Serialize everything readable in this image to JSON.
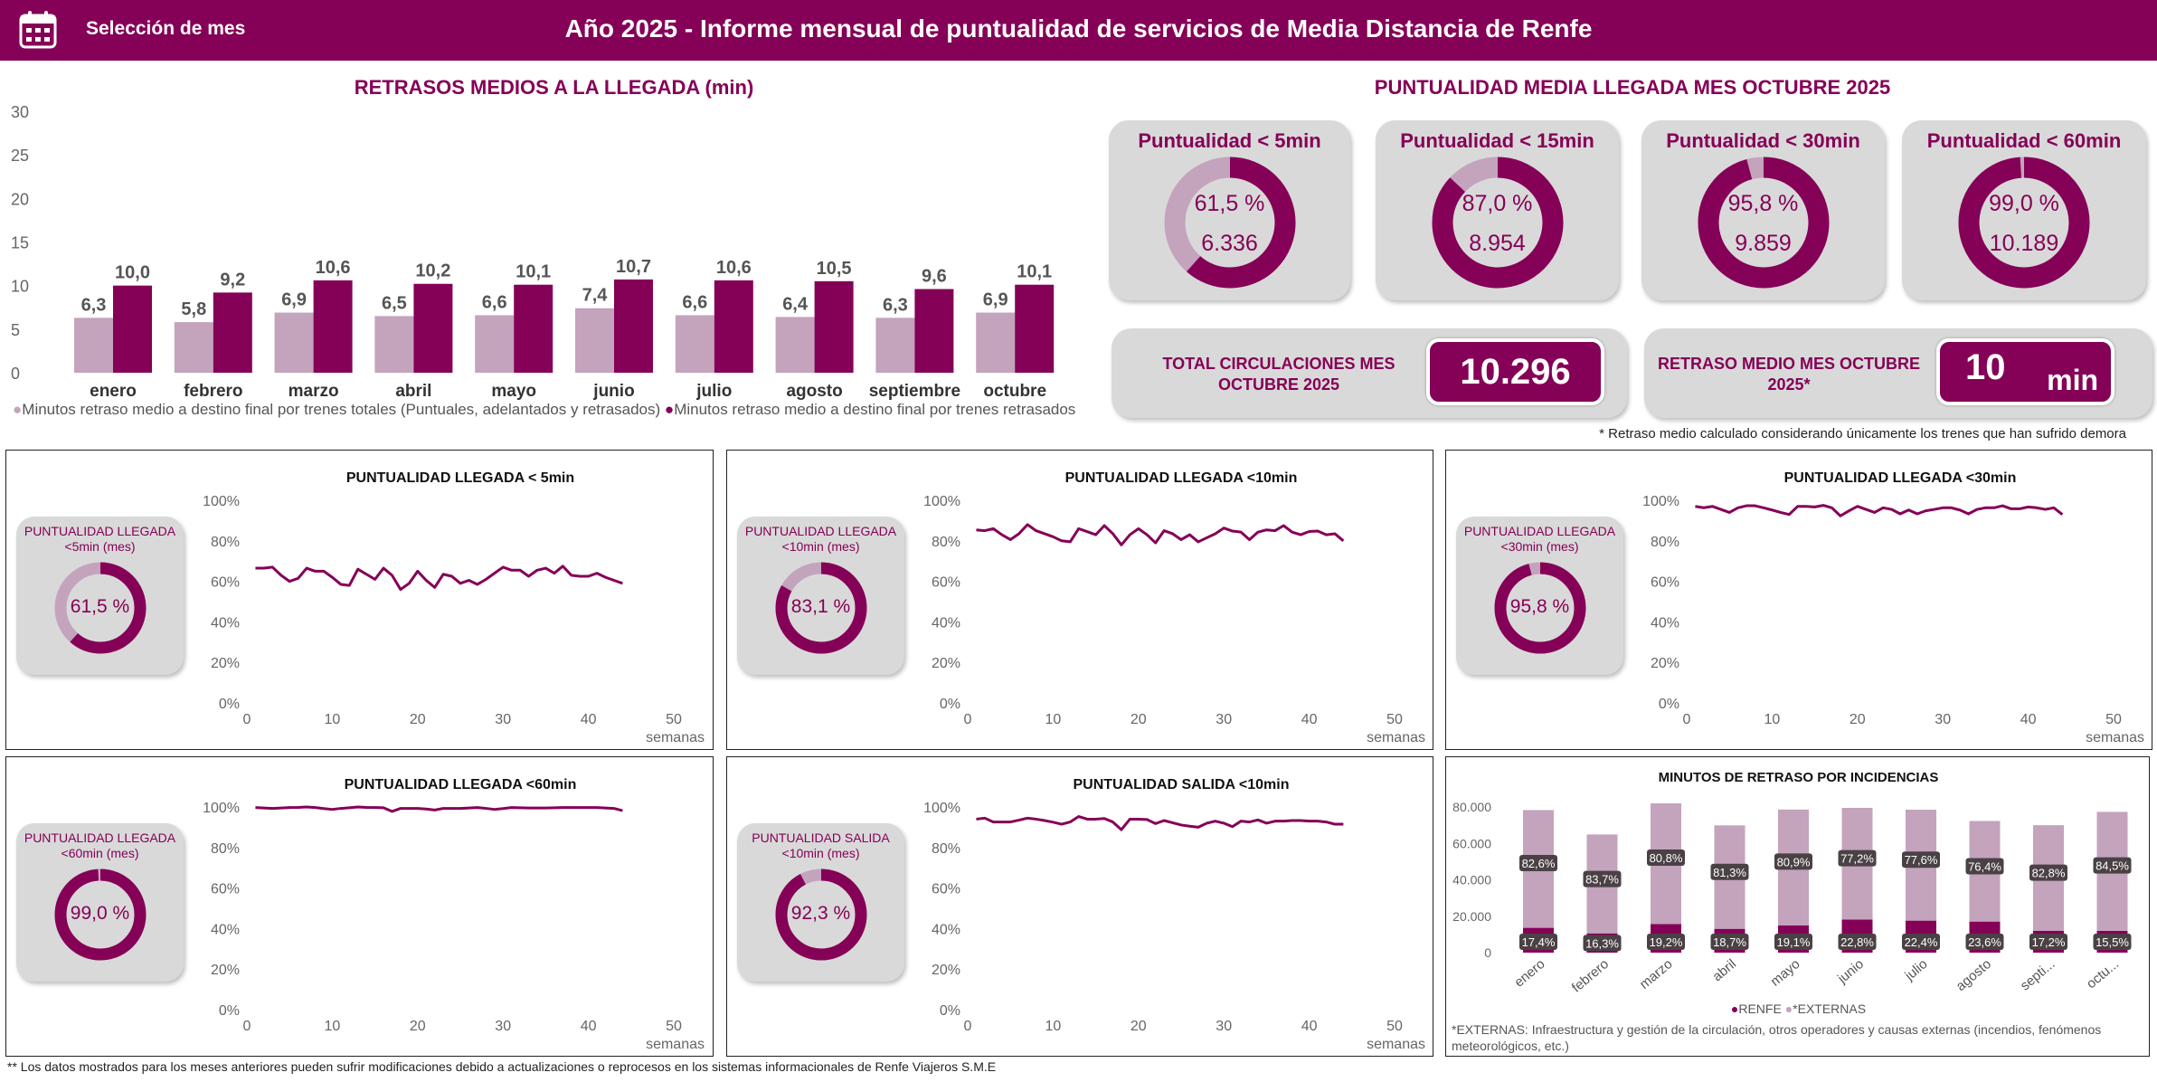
{
  "header": {
    "month_selector_label": "Selección de mes",
    "title": "Año 2025 - Informe mensual de puntualidad de servicios de Media Distancia de Renfe",
    "icon": "calendar-icon"
  },
  "colors": {
    "primary": "#850057",
    "light": "#c4a3bd",
    "card": "#d9d9d9"
  },
  "bar_chart": {
    "title": "RETRASOS MEDIOS A LA LLEGADA (min)",
    "chart_data": {
      "type": "bar",
      "categories": [
        "enero",
        "febrero",
        "marzo",
        "abril",
        "mayo",
        "junio",
        "julio",
        "agosto",
        "septiembre",
        "octubre"
      ],
      "series": [
        {
          "name": "Minutos retraso medio a destino final por trenes totales (Puntuales, adelantados y retrasados)",
          "color": "#c4a3bd",
          "values": [
            6.3,
            5.8,
            6.9,
            6.5,
            6.6,
            7.4,
            6.6,
            6.4,
            6.3,
            6.9
          ],
          "labels": [
            "6,3",
            "5,8",
            "6,9",
            "6,5",
            "6,6",
            "7,4",
            "6,6",
            "6,4",
            "6,3",
            "6,9"
          ]
        },
        {
          "name": "Minutos retraso medio a destino final por trenes retrasados",
          "color": "#850057",
          "values": [
            10.0,
            9.2,
            10.6,
            10.2,
            10.1,
            10.7,
            10.6,
            10.5,
            9.6,
            10.1
          ],
          "labels": [
            "10,0",
            "9,2",
            "10,6",
            "10,2",
            "10,1",
            "10,7",
            "10,6",
            "10,5",
            "9,6",
            "10,1"
          ]
        }
      ],
      "ylim": [
        0,
        30
      ],
      "yticks": [
        "0",
        "5",
        "10",
        "15",
        "20",
        "25",
        "30"
      ],
      "legend": "bottom"
    }
  },
  "kpi": {
    "title": "PUNTUALIDAD MEDIA LLEGADA MES OCTUBRE 2025",
    "donuts": [
      {
        "title": "Puntualidad < 5min",
        "pct": 61.5,
        "pct_label": "61,5 %",
        "count": "6.336"
      },
      {
        "title": "Puntualidad < 15min",
        "pct": 87.0,
        "pct_label": "87,0 %",
        "count": "8.954"
      },
      {
        "title": "Puntualidad < 30min",
        "pct": 95.8,
        "pct_label": "95,8 %",
        "count": "9.859"
      },
      {
        "title": "Puntualidad < 60min",
        "pct": 99.0,
        "pct_label": "99,0 %",
        "count": "10.189"
      }
    ],
    "total_label": "TOTAL CIRCULACIONES MES OCTUBRE 2025",
    "total_value": "10.296",
    "delay_label": "RETRASO MEDIO MES OCTUBRE 2025*",
    "delay_value": "10",
    "delay_unit": "min",
    "note": "* Retraso medio calculado considerando únicamente los trenes que han sufrido demora"
  },
  "line_panels": [
    {
      "title": "PUNTUALIDAD LLEGADA < 5min",
      "card_title": "PUNTUALIDAD LLEGADA <5min (mes)",
      "pct": 61.5,
      "pct_label": "61,5 %",
      "values": [
        66.5,
        66.5,
        67,
        63,
        60,
        61.5,
        66.5,
        65,
        65,
        62,
        58.5,
        58,
        66,
        63.5,
        61,
        66.5,
        63,
        56,
        59,
        65,
        60.5,
        57,
        63.5,
        62.5,
        59,
        60.5,
        58.5,
        61,
        64,
        67,
        65.5,
        65.5,
        62.5,
        65.5,
        66.5,
        64,
        67.5,
        63,
        62.5,
        62.5,
        64,
        62,
        60.5,
        59
      ]
    },
    {
      "title": "PUNTUALIDAD LLEGADA <10min",
      "card_title": "PUNTUALIDAD LLEGADA <10min (mes)",
      "pct": 83.1,
      "pct_label": "83,1 %",
      "values": [
        85.4,
        85,
        86,
        83,
        80.6,
        83.5,
        88,
        85,
        83.5,
        82,
        80,
        79.5,
        86,
        84.5,
        83,
        87.5,
        83.5,
        78,
        83,
        86,
        83,
        79,
        85,
        83.5,
        80.6,
        83,
        79.5,
        81.5,
        83.5,
        86.3,
        84.8,
        84.3,
        80.6,
        84.3,
        85.4,
        85,
        87.5,
        84.3,
        83,
        84.6,
        84.8,
        83,
        83.5,
        80
      ]
    },
    {
      "title": "PUNTUALIDAD LLEGADA <30min",
      "card_title": "PUNTUALIDAD LLEGADA <30min (mes)",
      "pct": 95.8,
      "pct_label": "95,8 %",
      "values": [
        97,
        96.3,
        97,
        95.5,
        94,
        96.3,
        97.3,
        97.3,
        96.3,
        95.2,
        94,
        93,
        97,
        97,
        96.7,
        97.5,
        96.3,
        92.3,
        94.8,
        97,
        95.5,
        94,
        96.3,
        95.5,
        93.3,
        95.2,
        93.3,
        94.8,
        95.5,
        96.3,
        96.3,
        95.2,
        93.3,
        95.5,
        96.3,
        96.3,
        97.3,
        95.8,
        95.8,
        96.7,
        96.3,
        95.5,
        96.3,
        93
      ]
    },
    {
      "title": "PUNTUALIDAD LLEGADA <60min",
      "card_title": "PUNTUALIDAD LLEGADA <60min (mes)",
      "pct": 99.0,
      "pct_label": "99,0 %",
      "values": [
        99.7,
        99.5,
        99.3,
        99.5,
        99.7,
        99.8,
        100,
        99.7,
        99.2,
        98.8,
        99.3,
        99.6,
        100,
        99.8,
        99.7,
        99.6,
        97.8,
        99.3,
        99.3,
        99.3,
        99,
        98.5,
        99.3,
        99.3,
        99.3,
        99.5,
        99.7,
        99.3,
        98.8,
        99.2,
        99.7,
        99.6,
        99.5,
        99.5,
        99.5,
        99.6,
        99.7,
        99.7,
        99.7,
        99.7,
        99.7,
        99.5,
        99.3,
        98.2
      ]
    },
    {
      "title": "PUNTUALIDAD SALIDA <10min",
      "card_title": "PUNTUALIDAD SALIDA <10min (mes)",
      "pct": 92.3,
      "pct_label": "92,3 %",
      "values": [
        94,
        94.5,
        92.6,
        92.6,
        92.6,
        93.5,
        94.5,
        94,
        93.3,
        92.5,
        91.5,
        92.6,
        95.3,
        94,
        94,
        94.3,
        92.6,
        88.8,
        94,
        94,
        93.8,
        91.8,
        93.3,
        92.2,
        91.1,
        90.5,
        90,
        92,
        93,
        92,
        90.3,
        93,
        92.6,
        93.6,
        92,
        93,
        93,
        93.3,
        93.3,
        93,
        93,
        92.6,
        91.5,
        91.5
      ]
    }
  ],
  "line_axes": {
    "yticks": [
      "0%",
      "20%",
      "40%",
      "60%",
      "80%",
      "100%"
    ],
    "xticks": [
      "0",
      "10",
      "20",
      "30",
      "40",
      "50"
    ],
    "xlabel": "semanas",
    "xlim": [
      0,
      50
    ],
    "ylim": [
      0,
      100
    ]
  },
  "incidents": {
    "title": "MINUTOS DE RETRASO POR INCIDENCIAS",
    "chart_data": {
      "type": "bar",
      "stacked": true,
      "categories": [
        "enero",
        "febrero",
        "marzo",
        "abril",
        "mayo",
        "junio",
        "julio",
        "agosto",
        "septi...",
        "octu..."
      ],
      "series": [
        {
          "name": "RENFE",
          "color": "#850057",
          "values": [
            13620,
            10580,
            15740,
            13070,
            15010,
            18130,
            17580,
            17060,
            12040,
            11980
          ],
          "labels": [
            "17,4%",
            "16,3%",
            "19,2%",
            "18,7%",
            "19,1%",
            "22,8%",
            "22,4%",
            "23,6%",
            "17,2%",
            "15,5%"
          ]
        },
        {
          "name": "*EXTERNAS",
          "color": "#c4a3bd",
          "values": [
            64680,
            54320,
            66260,
            56830,
            63590,
            61370,
            60920,
            55240,
            57960,
            65320
          ],
          "labels": [
            "82,6%",
            "83,7%",
            "80,8%",
            "81,3%",
            "80,9%",
            "77,2%",
            "77,6%",
            "76,4%",
            "82,8%",
            "84,5%"
          ]
        }
      ],
      "ylim": [
        0,
        80000
      ],
      "yticks": [
        "0",
        "20.000",
        "40.000",
        "60.000",
        "80.000"
      ],
      "legend": "bottom"
    },
    "note": "*EXTERNAS: Infraestructura y gestión de la circulación, otros operadores y causas externas (incendios, fenómenos meteorológicos, etc.)"
  },
  "footer_note": "** Los datos mostrados para los meses anteriores pueden sufrir modificaciones debido a actualizaciones o reprocesos en los sistemas informacionales de Renfe Viajeros S.M.E"
}
